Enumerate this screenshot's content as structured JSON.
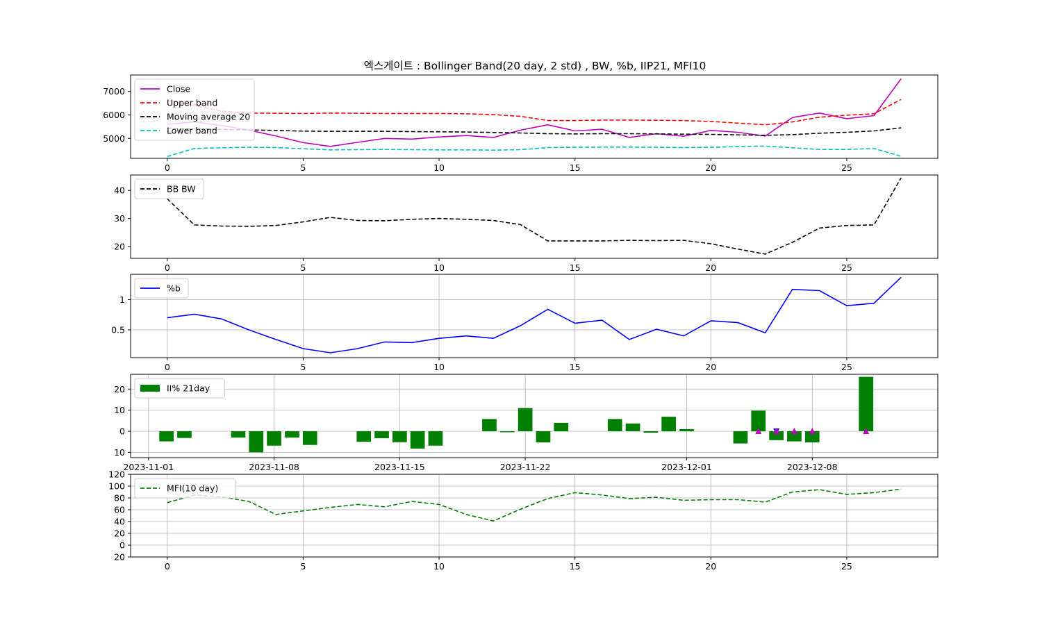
{
  "title": "엑스게이트 : Bollinger Band(20 day, 2 std) , BW, %b, IIP21, MFI10",
  "chart_data": [
    {
      "type": "line",
      "xlim": [
        -1.35,
        28.35
      ],
      "ylim": [
        4150,
        7700
      ],
      "grid": false,
      "legend_placement": "top-left",
      "xticks": [
        0,
        5,
        10,
        15,
        20,
        25
      ],
      "yticks": [
        5000,
        6000,
        7000
      ],
      "x": [
        0,
        1,
        2,
        3,
        4,
        5,
        6,
        7,
        8,
        9,
        10,
        11,
        12,
        13,
        14,
        15,
        16,
        17,
        18,
        19,
        20,
        21,
        22,
        23,
        24,
        25,
        26,
        27
      ],
      "series": [
        {
          "name": "Close",
          "color": "#bf00bf",
          "dash": "solid",
          "values": [
            5600,
            5700,
            5550,
            5350,
            5100,
            4820,
            4660,
            4830,
            5000,
            4970,
            5060,
            5120,
            5040,
            5350,
            5580,
            5320,
            5390,
            5040,
            5200,
            5090,
            5340,
            5260,
            5100,
            5890,
            6080,
            5840,
            5970,
            7540
          ]
        },
        {
          "name": "Upper band",
          "color": "#ff0000",
          "dash": "dashed",
          "values": [
            6620,
            6400,
            6160,
            6080,
            6070,
            6060,
            6080,
            6070,
            6060,
            6060,
            6060,
            6050,
            6010,
            5940,
            5760,
            5760,
            5780,
            5780,
            5770,
            5760,
            5720,
            5650,
            5580,
            5700,
            5900,
            5990,
            6050,
            6660
          ]
        },
        {
          "name": "Moving average 20",
          "color": "#000000",
          "dash": "dashed",
          "values": [
            5430,
            5400,
            5380,
            5360,
            5340,
            5310,
            5300,
            5300,
            5300,
            5290,
            5280,
            5270,
            5250,
            5230,
            5200,
            5190,
            5200,
            5200,
            5190,
            5180,
            5170,
            5150,
            5130,
            5160,
            5220,
            5260,
            5320,
            5450
          ]
        },
        {
          "name": "Lower band",
          "color": "#00bfbf",
          "dash": "dashed",
          "values": [
            4230,
            4570,
            4600,
            4620,
            4610,
            4560,
            4510,
            4520,
            4530,
            4520,
            4510,
            4510,
            4500,
            4520,
            4610,
            4620,
            4630,
            4630,
            4620,
            4610,
            4620,
            4650,
            4670,
            4600,
            4530,
            4530,
            4570,
            4240
          ]
        }
      ]
    },
    {
      "type": "line",
      "xlim": [
        -1.35,
        28.35
      ],
      "ylim": [
        15.8,
        45.5
      ],
      "grid": false,
      "legend_placement": "top-left",
      "xticks": [
        0,
        5,
        10,
        15,
        20,
        25
      ],
      "yticks": [
        20,
        30,
        40
      ],
      "x": [
        0,
        1,
        2,
        3,
        4,
        5,
        6,
        7,
        8,
        9,
        10,
        11,
        12,
        13,
        14,
        15,
        16,
        17,
        18,
        19,
        20,
        21,
        22,
        23,
        24,
        25,
        26,
        27
      ],
      "series": [
        {
          "name": "BB BW",
          "color": "#000000",
          "dash": "dashed",
          "values": [
            37.0,
            27.7,
            27.3,
            27.2,
            27.5,
            28.8,
            30.4,
            29.3,
            29.2,
            29.7,
            30.0,
            29.7,
            29.3,
            27.8,
            22.0,
            22.0,
            22.0,
            22.2,
            22.1,
            22.2,
            21.0,
            19.1,
            17.3,
            21.5,
            26.6,
            27.5,
            27.7,
            44.5
          ]
        }
      ]
    },
    {
      "type": "line",
      "xlim": [
        -1.35,
        28.35
      ],
      "ylim": [
        0.04,
        1.42
      ],
      "grid": true,
      "legend_placement": "top-left",
      "xticks": [
        0,
        5,
        10,
        15,
        20,
        25
      ],
      "yticks": [
        0.5,
        1.0
      ],
      "x": [
        0,
        1,
        2,
        3,
        4,
        5,
        6,
        7,
        8,
        9,
        10,
        11,
        12,
        13,
        14,
        15,
        16,
        17,
        18,
        19,
        20,
        21,
        22,
        23,
        24,
        25,
        26,
        27
      ],
      "series": [
        {
          "name": "%b",
          "color": "#0000ff",
          "dash": "solid",
          "values": [
            0.7,
            0.76,
            0.68,
            0.5,
            0.34,
            0.19,
            0.12,
            0.19,
            0.3,
            0.29,
            0.36,
            0.4,
            0.36,
            0.57,
            0.84,
            0.61,
            0.66,
            0.34,
            0.51,
            0.4,
            0.65,
            0.62,
            0.45,
            1.17,
            1.15,
            0.9,
            0.94,
            1.37
          ]
        }
      ]
    },
    {
      "type": "bar",
      "xlim": [
        "2023-10-31",
        "2023-12-15"
      ],
      "ylim": [
        -12.5,
        27.0
      ],
      "grid": true,
      "legend_placement": "top-left",
      "xticks": [
        "2023-11-01",
        "2023-11-08",
        "2023-11-15",
        "2023-11-22",
        "2023-12-01",
        "2023-12-08"
      ],
      "yticks": [
        -10,
        0,
        10,
        20
      ],
      "ytick_labels": [
        "\u000310",
        "0",
        "10",
        "20"
      ],
      "series": [
        {
          "name": "II% 21day",
          "color": "#008000",
          "dates": [
            "2023-11-02",
            "2023-11-03",
            "2023-11-06",
            "2023-11-07",
            "2023-11-08",
            "2023-11-09",
            "2023-11-10",
            "2023-11-13",
            "2023-11-14",
            "2023-11-15",
            "2023-11-16",
            "2023-11-17",
            "2023-11-20",
            "2023-11-21",
            "2023-11-22",
            "2023-11-23",
            "2023-11-24",
            "2023-11-27",
            "2023-11-28",
            "2023-11-29",
            "2023-11-30",
            "2023-12-01",
            "2023-12-04",
            "2023-12-05",
            "2023-12-06",
            "2023-12-07",
            "2023-12-08",
            "2023-12-11"
          ],
          "values": [
            -4.8,
            -3.2,
            -3.0,
            -10.0,
            -6.8,
            -3.0,
            -6.5,
            -5.0,
            -3.3,
            -5.2,
            -8.2,
            -6.8,
            5.8,
            -0.5,
            11.0,
            -5.3,
            4.0,
            5.8,
            3.7,
            -0.7,
            6.9,
            1.0,
            -5.8,
            9.8,
            -4.2,
            -4.8,
            -5.3,
            25.8
          ]
        }
      ],
      "markers": [
        {
          "date": "2023-12-05",
          "value": 0,
          "shape": "triangle-up",
          "color": "#bf00bf"
        },
        {
          "date": "2023-12-06",
          "value": 0,
          "shape": "triangle-down",
          "color": "#0000ff"
        },
        {
          "date": "2023-12-06",
          "value": 0,
          "shape": "triangle-up",
          "color": "#bf00bf"
        },
        {
          "date": "2023-12-07",
          "value": 0,
          "shape": "triangle-up",
          "color": "#bf00bf"
        },
        {
          "date": "2023-12-08",
          "value": 0,
          "shape": "triangle-up",
          "color": "#bf00bf"
        },
        {
          "date": "2023-12-11",
          "value": 0,
          "shape": "triangle-up",
          "color": "#bf00bf"
        }
      ]
    },
    {
      "type": "line",
      "xlim": [
        -1.35,
        28.35
      ],
      "ylim": [
        -20,
        120
      ],
      "grid": true,
      "legend_placement": "top-left",
      "xticks": [
        0,
        5,
        10,
        15,
        20,
        25
      ],
      "yticks": [
        -20,
        0,
        20,
        40,
        60,
        80,
        100,
        120
      ],
      "ytick_labels": [
        "\u000320",
        "0",
        "20",
        "40",
        "60",
        "80",
        "100",
        "120"
      ],
      "x": [
        0,
        1,
        2,
        3,
        4,
        5,
        6,
        7,
        8,
        9,
        10,
        11,
        12,
        13,
        14,
        15,
        16,
        17,
        18,
        19,
        20,
        21,
        22,
        23,
        24,
        25,
        26,
        27
      ],
      "series": [
        {
          "name": "MFI(10 day)",
          "color": "#008000",
          "dash": "dashed",
          "values": [
            72,
            85,
            82,
            74,
            52,
            58,
            64,
            69,
            65,
            74,
            69,
            52,
            41,
            61,
            79,
            89,
            85,
            79,
            81,
            76,
            77,
            77,
            73,
            90,
            94,
            86,
            89,
            95
          ]
        }
      ]
    }
  ]
}
